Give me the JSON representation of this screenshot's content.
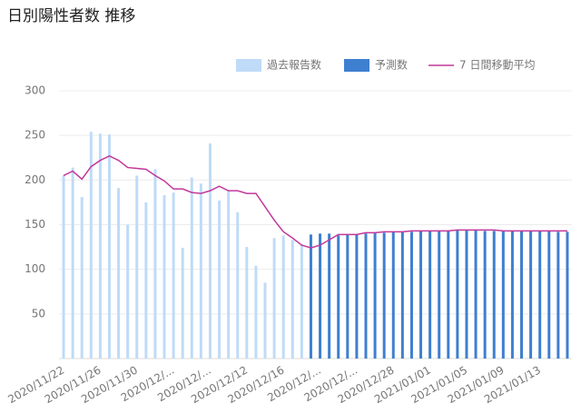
{
  "chart_data": {
    "type": "bar",
    "title": "日別陽性者数 推移",
    "categories": [
      "2020/11/22",
      null,
      null,
      null,
      "2020/11/26",
      null,
      null,
      null,
      "2020/11/30",
      null,
      null,
      null,
      "2020/12/...",
      null,
      null,
      null,
      "2020/12/...",
      null,
      null,
      null,
      "2020/12/12",
      null,
      null,
      null,
      "2020/12/16",
      null,
      null,
      null,
      "2020/12/...",
      null,
      null,
      null,
      "2020/12/...",
      null,
      null,
      null,
      "2020/12/28",
      null,
      null,
      null,
      "2021/01/01",
      null,
      null,
      null,
      "2021/01/05",
      null,
      null,
      null,
      "2021/01/09",
      null,
      null,
      null,
      "2021/01/13",
      null,
      null,
      null
    ],
    "series": [
      {
        "name": "過去報告数",
        "type": "bar",
        "color": "#bfdbf7",
        "values": [
          205,
          214,
          181,
          254,
          252,
          251,
          191,
          150,
          205,
          175,
          212,
          183,
          186,
          124,
          203,
          196,
          241,
          177,
          188,
          164,
          125,
          104,
          85,
          135,
          138,
          133,
          128,
          null,
          null,
          null,
          null,
          null,
          null,
          null,
          null,
          null,
          null,
          null,
          null,
          null,
          null,
          null,
          null,
          null,
          null,
          null,
          null,
          null,
          null,
          null,
          null,
          null,
          null,
          null,
          null,
          null
        ]
      },
      {
        "name": "予測数",
        "type": "bar",
        "color": "#3f7fd0",
        "values": [
          null,
          null,
          null,
          null,
          null,
          null,
          null,
          null,
          null,
          null,
          null,
          null,
          null,
          null,
          null,
          null,
          null,
          null,
          null,
          null,
          null,
          null,
          null,
          null,
          null,
          null,
          null,
          139,
          140,
          140,
          138,
          139,
          139,
          140,
          141,
          141,
          142,
          142,
          142,
          143,
          143,
          143,
          143,
          144,
          144,
          144,
          143,
          143,
          143,
          143,
          143,
          143,
          143,
          143,
          142,
          142
        ]
      },
      {
        "name": "7 日間移動平均",
        "type": "line",
        "color": "#c2389a",
        "values": [
          205,
          210,
          201,
          215,
          222,
          227,
          222,
          214,
          213,
          212,
          205,
          199,
          190,
          190,
          186,
          185,
          188,
          193,
          188,
          188,
          185,
          185,
          170,
          155,
          142,
          135,
          127,
          124,
          127,
          133,
          139,
          139,
          139,
          141,
          141,
          142,
          142,
          142,
          143,
          143,
          143,
          143,
          143,
          144,
          144,
          144,
          144,
          144,
          143,
          143,
          143,
          143,
          143,
          143,
          143,
          143
        ]
      }
    ],
    "ylim": [
      0,
      300
    ],
    "yticks": [
      50,
      100,
      150,
      200,
      250,
      300
    ],
    "grid": true,
    "legend": "top-right"
  }
}
